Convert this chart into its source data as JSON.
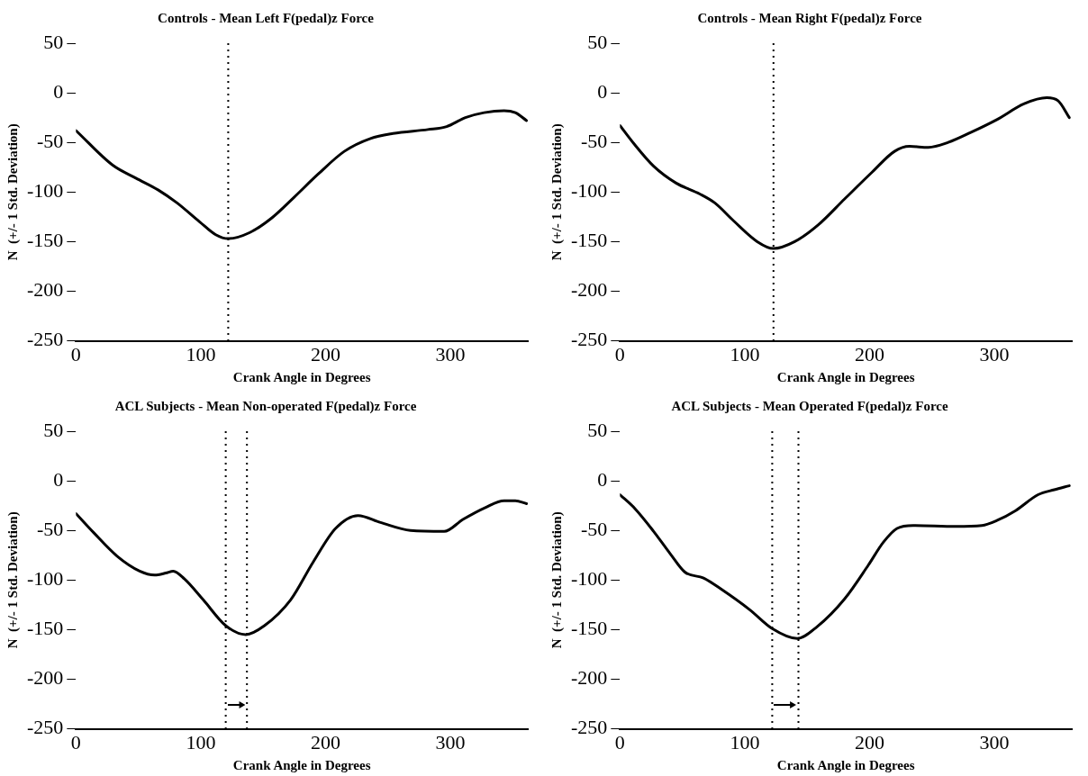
{
  "chart_data": [
    {
      "type": "line",
      "title": "Controls - Mean Left F(pedal)z Force",
      "xlabel": "Crank Angle in Degrees",
      "ylabel": "N  (+/- 1 Std. Deviation)",
      "xlim": [
        0,
        362
      ],
      "ylim": [
        -250,
        50
      ],
      "xticks": [
        0,
        100,
        200,
        300
      ],
      "yticks": [
        50,
        0,
        -50,
        -100,
        -150,
        -200,
        -250
      ],
      "marker": "none",
      "line_style": "solid",
      "series": [
        {
          "color": "#000000",
          "x": [
            0,
            29.5,
            48,
            66,
            81,
            99,
            112,
            122,
            139,
            157,
            175,
            194,
            215,
            236,
            254,
            282,
            297,
            312,
            327,
            343,
            352,
            361
          ],
          "values": [
            -38,
            -73,
            -86,
            -98,
            -111,
            -130,
            -143,
            -147,
            -141,
            -126,
            -105,
            -82,
            -59,
            -46,
            -41,
            -37,
            -34,
            -25,
            -20,
            -18,
            -20,
            -28
          ]
        }
      ],
      "ref_lines": [
        {
          "axis": "x",
          "value": 122,
          "color": "#000000",
          "line_style": "dotted"
        }
      ]
    },
    {
      "type": "line",
      "title": "Controls - Mean Right F(pedal)z Force",
      "xlabel": "Crank Angle in Degrees",
      "ylabel": "N  (+/- 1 Std. Deviation)",
      "xlim": [
        0,
        362
      ],
      "ylim": [
        -250,
        50
      ],
      "xticks": [
        0,
        100,
        200,
        300
      ],
      "yticks": [
        50,
        0,
        -50,
        -100,
        -150,
        -200,
        -250
      ],
      "marker": "none",
      "line_style": "solid",
      "series": [
        {
          "color": "#000000",
          "x": [
            0,
            11,
            27,
            45,
            64,
            76,
            91,
            110,
            123,
            140,
            159,
            180,
            202,
            220,
            232,
            247,
            263,
            281,
            302,
            324,
            342,
            351,
            360
          ],
          "values": [
            -33,
            -51,
            -74,
            -91,
            -102,
            -111,
            -129,
            -150,
            -157,
            -150,
            -133,
            -107,
            -80,
            -59,
            -54,
            -55,
            -50,
            -40,
            -27,
            -11,
            -5,
            -8,
            -25
          ]
        }
      ],
      "ref_lines": [
        {
          "axis": "x",
          "value": 123,
          "color": "#000000",
          "line_style": "dotted"
        }
      ]
    },
    {
      "type": "line",
      "title": "ACL Subjects - Mean Non-operated F(pedal)z Force",
      "xlabel": "Crank Angle in Degrees",
      "ylabel": "N  (+/- 1 Std. Deviation)",
      "xlim": [
        0,
        362
      ],
      "ylim": [
        -250,
        50
      ],
      "xticks": [
        0,
        100,
        200,
        300
      ],
      "yticks": [
        50,
        0,
        -50,
        -100,
        -150,
        -200,
        -250
      ],
      "marker": "none",
      "line_style": "solid",
      "series": [
        {
          "color": "#000000",
          "x": [
            0,
            14,
            33,
            51,
            63,
            72,
            78,
            87,
            102,
            120,
            136,
            151,
            172,
            190,
            208,
            226,
            244,
            268,
            295,
            310,
            328,
            343,
            352,
            361
          ],
          "values": [
            -33,
            -52,
            -76,
            -91,
            -95,
            -93,
            -91,
            -99,
            -120,
            -146,
            -155,
            -146,
            -120,
            -82,
            -48,
            -35,
            -42,
            -50,
            -51,
            -39,
            -27,
            -20,
            -20,
            -23
          ]
        }
      ],
      "ref_lines": [
        {
          "axis": "x",
          "value": 120,
          "color": "#000000",
          "line_style": "dotted"
        },
        {
          "axis": "x",
          "value": 137,
          "color": "#000000",
          "line_style": "dotted"
        }
      ]
    },
    {
      "type": "line",
      "title": "ACL Subjects - Mean Operated F(pedal)z Force",
      "xlabel": "Crank Angle in Degrees",
      "ylabel": "N  (+/- 1 Std. Deviation)",
      "xlim": [
        0,
        362
      ],
      "ylim": [
        -250,
        50
      ],
      "xticks": [
        0,
        100,
        200,
        300
      ],
      "yticks": [
        50,
        0,
        -50,
        -100,
        -150,
        -200,
        -250
      ],
      "marker": "none",
      "line_style": "solid",
      "series": [
        {
          "color": "#000000",
          "x": [
            0,
            12,
            27,
            40,
            52,
            67,
            82,
            104,
            122,
            142,
            158,
            180,
            199,
            211,
            222,
            235,
            269,
            290,
            302,
            317,
            335,
            348,
            360
          ],
          "values": [
            -14,
            -28,
            -51,
            -73,
            -92,
            -98,
            -110,
            -130,
            -149,
            -159,
            -147,
            -119,
            -85,
            -62,
            -48,
            -45,
            -46,
            -45,
            -40,
            -30,
            -14,
            -9,
            -5
          ]
        }
      ],
      "ref_lines": [
        {
          "axis": "x",
          "value": 122,
          "color": "#000000",
          "line_style": "dotted"
        },
        {
          "axis": "x",
          "value": 143,
          "color": "#000000",
          "line_style": "dotted"
        }
      ]
    }
  ]
}
